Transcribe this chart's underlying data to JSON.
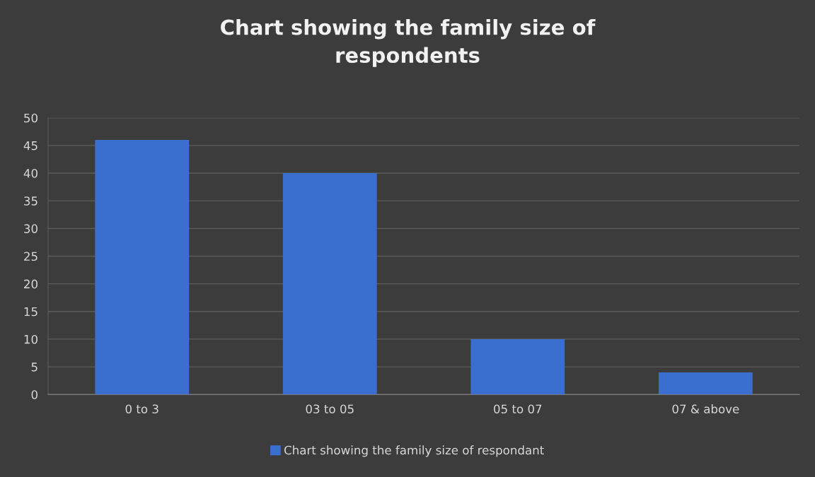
{
  "chart_data": {
    "type": "bar",
    "title": "Chart showing the family size of\nrespondents",
    "categories": [
      "0 to 3",
      "03 to 05",
      "05 to 07",
      "07 & above"
    ],
    "series": [
      {
        "name": "Chart showing the family size of respondant",
        "color": "#3a6fd0",
        "values": [
          46,
          40,
          10,
          4
        ]
      }
    ],
    "ylim": [
      0,
      50
    ],
    "yticks": [
      0,
      5,
      10,
      15,
      20,
      25,
      30,
      35,
      40,
      45,
      50
    ],
    "grid": "y",
    "legend": "bottom"
  }
}
